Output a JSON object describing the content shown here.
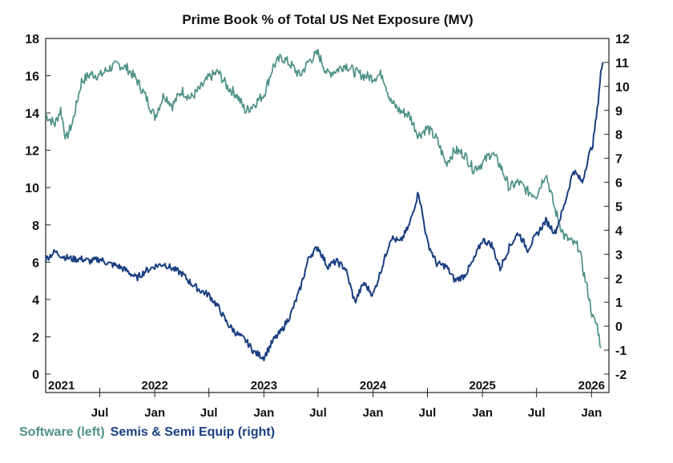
{
  "chart_data": {
    "type": "line",
    "title": "Prime Book % of Total US Net Exposure (MV)",
    "grid": false,
    "legend_position": "bottom-left",
    "colors": {
      "Software (left)": "#4e9188",
      "Semis & Semi Equip (right)": "#1a3f80"
    },
    "x_range": [
      "2021-01-01",
      "2026-02-28"
    ],
    "y_left_range": [
      0,
      18
    ],
    "y_left_ticks": [
      "0",
      "2",
      "4",
      "6",
      "8",
      "10",
      "12",
      "14",
      "16",
      "18"
    ],
    "y_right_range": [
      -2,
      12
    ],
    "y_right_ticks": [
      "-2",
      "-1",
      "0",
      "1",
      "2",
      "3",
      "4",
      "5",
      "6",
      "7",
      "8",
      "9",
      "10",
      "11",
      "12"
    ],
    "x_year_labels": [
      {
        "label": "2021",
        "date": "2021-01-01"
      },
      {
        "label": "2022",
        "date": "2022-01-01"
      },
      {
        "label": "2023",
        "date": "2023-01-01"
      },
      {
        "label": "2024",
        "date": "2024-01-01"
      },
      {
        "label": "2025",
        "date": "2025-01-01"
      },
      {
        "label": "2026",
        "date": "2026-01-01"
      }
    ],
    "x_month_labels": [
      {
        "label": "Jul",
        "date": "2021-07-01"
      },
      {
        "label": "Jan",
        "date": "2022-01-01"
      },
      {
        "label": "Jul",
        "date": "2022-07-01"
      },
      {
        "label": "Jan",
        "date": "2023-01-01"
      },
      {
        "label": "Jul",
        "date": "2023-07-01"
      },
      {
        "label": "Jan",
        "date": "2024-01-01"
      },
      {
        "label": "Jul",
        "date": "2024-07-01"
      },
      {
        "label": "Jan",
        "date": "2025-01-01"
      },
      {
        "label": "Jul",
        "date": "2025-07-01"
      },
      {
        "label": "Jan",
        "date": "2026-01-01"
      }
    ],
    "series": [
      {
        "name": "Software (left)",
        "axis": "left",
        "points": [
          [
            "2021-01-01",
            13.9
          ],
          [
            "2021-02-01",
            13.4
          ],
          [
            "2021-02-20",
            14.2
          ],
          [
            "2021-03-10",
            12.6
          ],
          [
            "2021-04-01",
            13.5
          ],
          [
            "2021-05-01",
            15.7
          ],
          [
            "2021-06-01",
            16.1
          ],
          [
            "2021-07-01",
            16.0
          ],
          [
            "2021-08-01",
            16.4
          ],
          [
            "2021-09-01",
            16.6
          ],
          [
            "2021-10-01",
            16.4
          ],
          [
            "2021-11-01",
            15.8
          ],
          [
            "2021-12-01",
            14.9
          ],
          [
            "2022-01-01",
            13.8
          ],
          [
            "2022-02-01",
            15.0
          ],
          [
            "2022-03-01",
            14.4
          ],
          [
            "2022-04-01",
            15.2
          ],
          [
            "2022-05-01",
            14.8
          ],
          [
            "2022-06-01",
            15.3
          ],
          [
            "2022-07-01",
            15.9
          ],
          [
            "2022-08-01",
            16.2
          ],
          [
            "2022-09-01",
            15.4
          ],
          [
            "2022-10-01",
            15.0
          ],
          [
            "2022-11-01",
            14.1
          ],
          [
            "2022-12-01",
            14.5
          ],
          [
            "2023-01-01",
            15.0
          ],
          [
            "2023-02-01",
            16.5
          ],
          [
            "2023-03-01",
            17.0
          ],
          [
            "2023-04-01",
            16.6
          ],
          [
            "2023-05-01",
            16.0
          ],
          [
            "2023-06-01",
            16.8
          ],
          [
            "2023-07-01",
            17.2
          ],
          [
            "2023-08-01",
            16.1
          ],
          [
            "2023-09-01",
            16.3
          ],
          [
            "2023-10-01",
            16.6
          ],
          [
            "2023-11-01",
            16.2
          ],
          [
            "2023-12-01",
            16.0
          ],
          [
            "2024-01-01",
            15.9
          ],
          [
            "2024-02-01",
            16.1
          ],
          [
            "2024-03-01",
            14.6
          ],
          [
            "2024-04-01",
            14.1
          ],
          [
            "2024-05-01",
            13.9
          ],
          [
            "2024-06-01",
            12.8
          ],
          [
            "2024-07-01",
            13.2
          ],
          [
            "2024-08-01",
            12.6
          ],
          [
            "2024-09-01",
            11.3
          ],
          [
            "2024-10-01",
            12.0
          ],
          [
            "2024-11-01",
            11.8
          ],
          [
            "2024-12-01",
            11.0
          ],
          [
            "2025-01-01",
            11.3
          ],
          [
            "2025-02-01",
            11.9
          ],
          [
            "2025-03-01",
            11.2
          ],
          [
            "2025-04-01",
            10.0
          ],
          [
            "2025-05-01",
            10.3
          ],
          [
            "2025-06-01",
            9.8
          ],
          [
            "2025-07-01",
            9.6
          ],
          [
            "2025-08-01",
            10.8
          ],
          [
            "2025-09-01",
            8.8
          ],
          [
            "2025-10-01",
            7.4
          ],
          [
            "2025-11-01",
            7.0
          ],
          [
            "2025-11-20",
            6.8
          ],
          [
            "2025-12-05",
            5.5
          ],
          [
            "2025-12-20",
            4.4
          ],
          [
            "2026-01-05",
            3.0
          ],
          [
            "2026-01-20",
            2.6
          ],
          [
            "2026-02-01",
            1.4
          ]
        ]
      },
      {
        "name": "Semis & Semi Equip (right)",
        "axis": "right",
        "points": [
          [
            "2021-01-01",
            2.8
          ],
          [
            "2021-02-01",
            3.1
          ],
          [
            "2021-03-01",
            2.9
          ],
          [
            "2021-04-01",
            2.8
          ],
          [
            "2021-05-01",
            2.8
          ],
          [
            "2021-06-01",
            2.7
          ],
          [
            "2021-07-01",
            2.8
          ],
          [
            "2021-08-01",
            2.6
          ],
          [
            "2021-09-01",
            2.5
          ],
          [
            "2021-10-01",
            2.3
          ],
          [
            "2021-11-01",
            2.0
          ],
          [
            "2021-12-01",
            2.3
          ],
          [
            "2022-01-01",
            2.5
          ],
          [
            "2022-02-01",
            2.6
          ],
          [
            "2022-03-01",
            2.4
          ],
          [
            "2022-04-01",
            2.2
          ],
          [
            "2022-05-01",
            1.8
          ],
          [
            "2022-06-01",
            1.5
          ],
          [
            "2022-07-01",
            1.3
          ],
          [
            "2022-08-01",
            0.8
          ],
          [
            "2022-09-01",
            0.1
          ],
          [
            "2022-10-01",
            -0.3
          ],
          [
            "2022-11-01",
            -0.6
          ],
          [
            "2022-12-01",
            -1.1
          ],
          [
            "2023-01-01",
            -1.3
          ],
          [
            "2023-02-01",
            -0.6
          ],
          [
            "2023-03-01",
            -0.2
          ],
          [
            "2023-04-01",
            0.5
          ],
          [
            "2023-05-01",
            1.5
          ],
          [
            "2023-06-01",
            2.9
          ],
          [
            "2023-07-01",
            3.3
          ],
          [
            "2023-08-01",
            2.5
          ],
          [
            "2023-09-01",
            2.7
          ],
          [
            "2023-10-01",
            2.4
          ],
          [
            "2023-11-01",
            1.0
          ],
          [
            "2023-12-01",
            1.8
          ],
          [
            "2024-01-01",
            1.3
          ],
          [
            "2024-02-01",
            2.5
          ],
          [
            "2024-03-01",
            3.7
          ],
          [
            "2024-04-01",
            3.5
          ],
          [
            "2024-05-01",
            4.2
          ],
          [
            "2024-06-01",
            5.6
          ],
          [
            "2024-07-01",
            3.5
          ],
          [
            "2024-08-01",
            2.6
          ],
          [
            "2024-09-01",
            2.5
          ],
          [
            "2024-10-01",
            1.9
          ],
          [
            "2024-11-01",
            2.1
          ],
          [
            "2024-12-01",
            2.7
          ],
          [
            "2025-01-01",
            3.6
          ],
          [
            "2025-02-01",
            3.4
          ],
          [
            "2025-03-01",
            2.4
          ],
          [
            "2025-04-01",
            3.3
          ],
          [
            "2025-05-01",
            3.9
          ],
          [
            "2025-06-01",
            3.2
          ],
          [
            "2025-07-01",
            3.8
          ],
          [
            "2025-08-01",
            4.4
          ],
          [
            "2025-09-01",
            3.9
          ],
          [
            "2025-10-01",
            5.0
          ],
          [
            "2025-11-01",
            6.5
          ],
          [
            "2025-12-01",
            6.0
          ],
          [
            "2025-12-20",
            7.0
          ],
          [
            "2026-01-05",
            7.6
          ],
          [
            "2026-01-20",
            9.0
          ],
          [
            "2026-02-01",
            10.6
          ],
          [
            "2026-02-10",
            11.0
          ]
        ]
      }
    ]
  }
}
